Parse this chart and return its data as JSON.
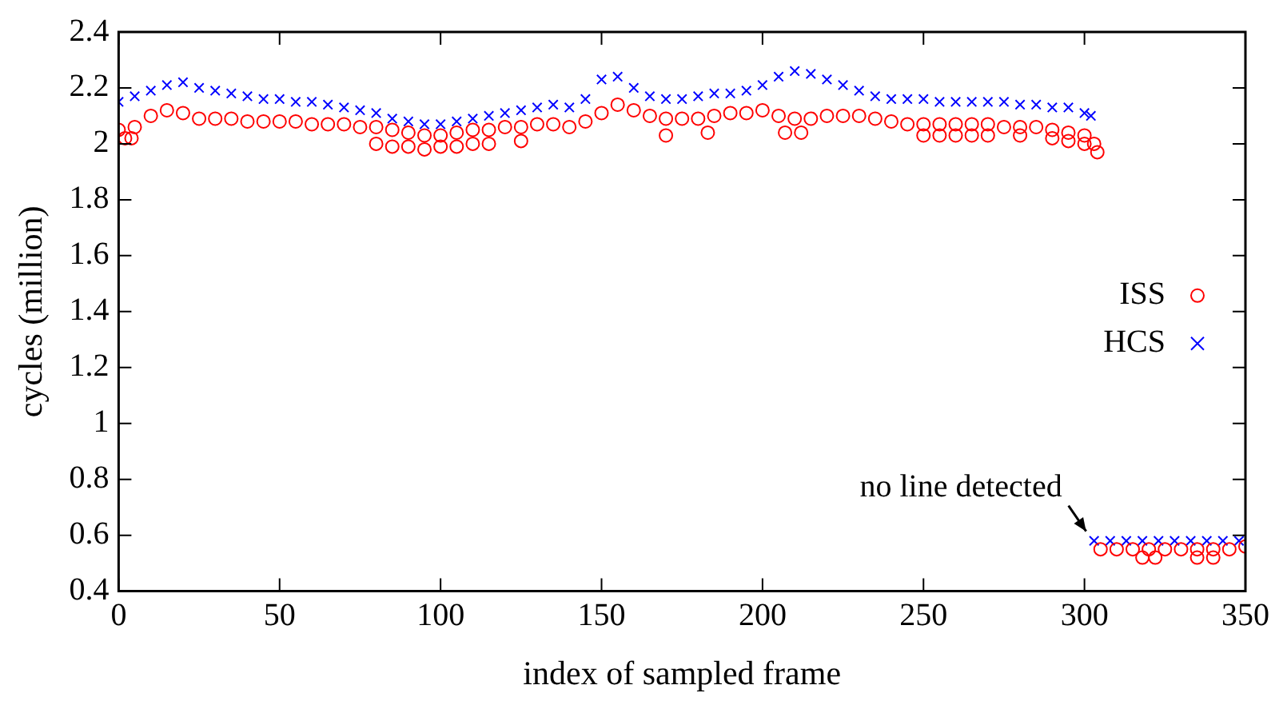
{
  "chart_data": {
    "type": "scatter",
    "xlabel": "index of sampled frame",
    "ylabel": "cycles (million)",
    "xlim": [
      0,
      350
    ],
    "xticks": [
      0,
      50,
      100,
      150,
      200,
      250,
      300,
      350
    ],
    "ylim": [
      0.4,
      2.4
    ],
    "yticks": [
      0.4,
      0.6,
      0.8,
      1,
      1.2,
      1.4,
      1.6,
      1.8,
      2,
      2.2,
      2.4
    ],
    "grid": false,
    "legend": "right",
    "annotations": [
      {
        "text": "no line detected",
        "x": 302,
        "y": 0.58
      }
    ],
    "series": [
      {
        "name": "ISS",
        "color": "#ff0000",
        "marker": "circle",
        "x": [
          0,
          5,
          10,
          15,
          20,
          25,
          30,
          35,
          40,
          45,
          50,
          55,
          60,
          65,
          70,
          75,
          80,
          85,
          90,
          95,
          100,
          105,
          110,
          115,
          120,
          125,
          130,
          135,
          140,
          145,
          150,
          155,
          160,
          165,
          170,
          175,
          180,
          185,
          190,
          195,
          200,
          205,
          210,
          215,
          220,
          225,
          230,
          235,
          240,
          245,
          250,
          255,
          260,
          265,
          270,
          275,
          280,
          285,
          290,
          295,
          300,
          303,
          2,
          4,
          80,
          85,
          90,
          95,
          100,
          105,
          110,
          115,
          125,
          170,
          183,
          207,
          212,
          250,
          255,
          260,
          265,
          270,
          280,
          290,
          295,
          300,
          304,
          305,
          310,
          315,
          320,
          325,
          330,
          335,
          340,
          345,
          350,
          318,
          322,
          335,
          340
        ],
        "values": [
          2.05,
          2.06,
          2.1,
          2.12,
          2.11,
          2.09,
          2.09,
          2.09,
          2.08,
          2.08,
          2.08,
          2.08,
          2.07,
          2.07,
          2.07,
          2.06,
          2.06,
          2.05,
          2.04,
          2.03,
          2.03,
          2.04,
          2.05,
          2.05,
          2.06,
          2.06,
          2.07,
          2.07,
          2.06,
          2.08,
          2.11,
          2.14,
          2.12,
          2.1,
          2.09,
          2.09,
          2.09,
          2.1,
          2.11,
          2.11,
          2.12,
          2.1,
          2.09,
          2.09,
          2.1,
          2.1,
          2.1,
          2.09,
          2.08,
          2.07,
          2.07,
          2.07,
          2.07,
          2.07,
          2.07,
          2.06,
          2.06,
          2.06,
          2.05,
          2.04,
          2.03,
          2.0,
          2.02,
          2.02,
          2.0,
          1.99,
          1.99,
          1.98,
          1.99,
          1.99,
          2.0,
          2.0,
          2.01,
          2.03,
          2.04,
          2.04,
          2.04,
          2.03,
          2.03,
          2.03,
          2.03,
          2.03,
          2.03,
          2.02,
          2.01,
          2.0,
          1.97,
          0.55,
          0.55,
          0.55,
          0.55,
          0.55,
          0.55,
          0.55,
          0.55,
          0.55,
          0.56,
          0.52,
          0.52,
          0.52,
          0.52
        ]
      },
      {
        "name": "HCS",
        "color": "#0000ff",
        "marker": "cross",
        "x": [
          0,
          5,
          10,
          15,
          20,
          25,
          30,
          35,
          40,
          45,
          50,
          55,
          60,
          65,
          70,
          75,
          80,
          85,
          90,
          95,
          100,
          105,
          110,
          115,
          120,
          125,
          130,
          135,
          140,
          145,
          150,
          155,
          160,
          165,
          170,
          175,
          180,
          185,
          190,
          195,
          200,
          205,
          210,
          215,
          220,
          225,
          230,
          235,
          240,
          245,
          250,
          255,
          260,
          265,
          270,
          275,
          280,
          285,
          290,
          295,
          300,
          302,
          303,
          308,
          313,
          318,
          323,
          328,
          333,
          338,
          343,
          348
        ],
        "values": [
          2.15,
          2.17,
          2.19,
          2.21,
          2.22,
          2.2,
          2.19,
          2.18,
          2.17,
          2.16,
          2.16,
          2.15,
          2.15,
          2.14,
          2.13,
          2.12,
          2.11,
          2.09,
          2.08,
          2.07,
          2.07,
          2.08,
          2.09,
          2.1,
          2.11,
          2.12,
          2.13,
          2.14,
          2.13,
          2.16,
          2.23,
          2.24,
          2.2,
          2.17,
          2.16,
          2.16,
          2.17,
          2.18,
          2.18,
          2.19,
          2.21,
          2.24,
          2.26,
          2.25,
          2.23,
          2.21,
          2.19,
          2.17,
          2.16,
          2.16,
          2.16,
          2.15,
          2.15,
          2.15,
          2.15,
          2.15,
          2.14,
          2.14,
          2.13,
          2.13,
          2.11,
          2.1,
          0.58,
          0.58,
          0.58,
          0.58,
          0.58,
          0.58,
          0.58,
          0.58,
          0.58,
          0.58
        ]
      }
    ]
  }
}
